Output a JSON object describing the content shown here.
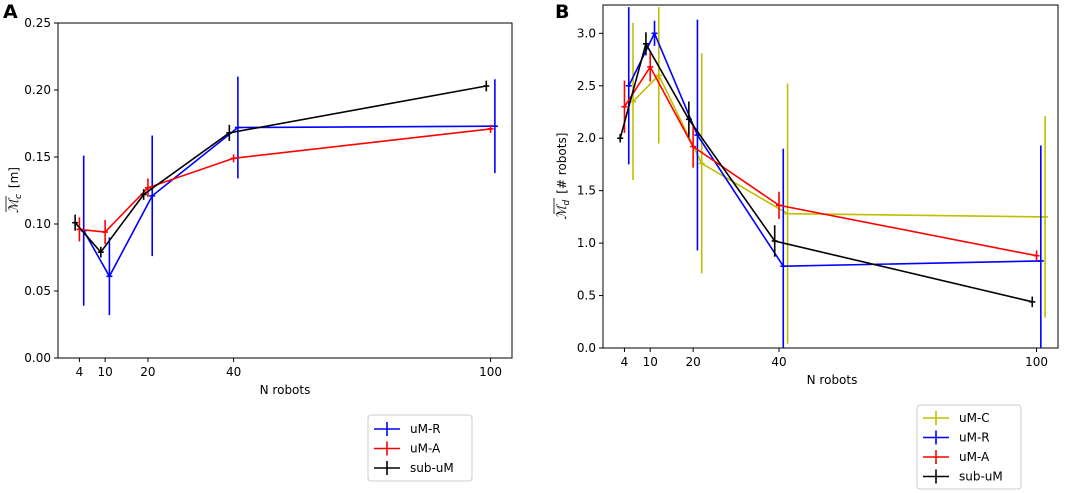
{
  "panels": [
    {
      "letter": "A",
      "xlabel": "N robots",
      "ylabel": "[m]",
      "ylabel_symbol": "ℳ",
      "ylabel_sub": "c",
      "xticks": [
        4,
        10,
        20,
        40,
        100
      ],
      "yticks": [
        "0.00",
        "0.05",
        "0.10",
        "0.15",
        "0.20",
        "0.25"
      ],
      "xlim": [
        -1,
        105
      ],
      "ylim": [
        0,
        0.25
      ],
      "series": [
        {
          "name": "uM-R",
          "color": "#0000ff",
          "x": [
            5,
            11,
            21,
            41,
            101
          ],
          "y": [
            0.095,
            0.061,
            0.121,
            0.172,
            0.173
          ],
          "err": [
            0.056,
            0.029,
            0.045,
            0.038,
            0.035
          ]
        },
        {
          "name": "uM-A",
          "color": "#ff0000",
          "x": [
            4,
            10,
            20,
            40,
            100
          ],
          "y": [
            0.096,
            0.094,
            0.127,
            0.149,
            0.171
          ],
          "err": [
            0.009,
            0.009,
            0.007,
            0.003,
            0.003
          ]
        },
        {
          "name": "sub-uM",
          "color": "#000000",
          "x": [
            3,
            9,
            19,
            39,
            99
          ],
          "y": [
            0.101,
            0.079,
            0.122,
            0.168,
            0.203
          ],
          "err": [
            0.006,
            0.004,
            0.004,
            0.006,
            0.004
          ]
        }
      ],
      "legend": [
        "uM-R",
        "uM-A",
        "sub-uM"
      ]
    },
    {
      "letter": "B",
      "xlabel": "N robots",
      "ylabel": "[# robots]",
      "ylabel_symbol": "ℳ",
      "ylabel_sub": "d",
      "xticks": [
        4,
        10,
        20,
        40,
        100
      ],
      "yticks": [
        "0.0",
        "0.5",
        "1.0",
        "1.5",
        "2.0",
        "2.5",
        "3.0"
      ],
      "xlim": [
        -1,
        105
      ],
      "ylim": [
        0,
        3.27
      ],
      "series": [
        {
          "name": "uM-C",
          "color": "#bfbf00",
          "x": [
            6,
            12,
            22,
            42,
            102
          ],
          "y": [
            2.35,
            2.6,
            1.76,
            1.28,
            1.25
          ],
          "err": [
            0.75,
            0.65,
            1.05,
            1.24,
            0.96
          ]
        },
        {
          "name": "uM-R",
          "color": "#0000ff",
          "x": [
            5,
            11,
            21,
            41,
            101
          ],
          "y": [
            2.5,
            3.0,
            2.03,
            0.78,
            0.83
          ],
          "err": [
            0.75,
            0.12,
            1.1,
            1.12,
            1.1
          ]
        },
        {
          "name": "uM-A",
          "color": "#ff0000",
          "x": [
            4,
            10,
            20,
            40,
            100
          ],
          "y": [
            2.3,
            2.68,
            1.92,
            1.36,
            0.88
          ],
          "err": [
            0.25,
            0.14,
            0.2,
            0.13,
            0.05
          ]
        },
        {
          "name": "sub-uM",
          "color": "#000000",
          "x": [
            3,
            9,
            19,
            39,
            99
          ],
          "y": [
            2.0,
            2.9,
            2.18,
            1.02,
            0.44
          ],
          "err": [
            0.04,
            0.11,
            0.17,
            0.15,
            0.05
          ]
        }
      ],
      "legend": [
        "uM-C",
        "uM-R",
        "uM-A",
        "sub-uM"
      ]
    }
  ]
}
